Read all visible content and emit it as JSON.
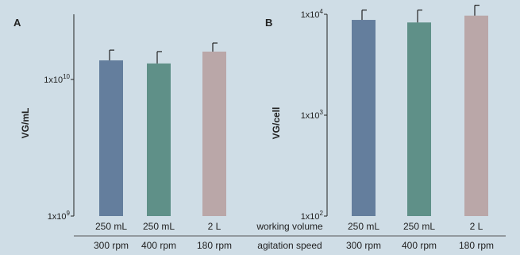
{
  "panels": {
    "A": {
      "label": "A",
      "ylabel": "VG/mL"
    },
    "B": {
      "label": "B",
      "ylabel": "VG/cell"
    }
  },
  "table": {
    "row_headers": [
      "working volume",
      "agitation speed"
    ],
    "volumes": [
      "250 mL",
      "250 mL",
      "2 L"
    ],
    "speeds": [
      "300 rpm",
      "400 rpm",
      "180 rpm"
    ]
  },
  "colors": {
    "background": "#cfdde6",
    "bars": [
      "#647e9d",
      "#5f9088",
      "#baa7a8"
    ],
    "axis": "#222222",
    "separator": "#555555"
  },
  "chart_data": [
    {
      "type": "bar",
      "title": "A",
      "ylabel": "VG/mL",
      "yscale": "log",
      "ylim": [
        1000000000,
        30000000000
      ],
      "yticks": [
        1000000000,
        10000000000
      ],
      "ytick_labels": [
        {
          "base": "1x10",
          "exp": "9"
        },
        {
          "base": "1x10",
          "exp": "10"
        }
      ],
      "categories": [
        "250 mL / 300 rpm",
        "250 mL / 400 rpm",
        "2 L / 180 rpm"
      ],
      "values": [
        13800000000,
        13100000000,
        16000000000
      ],
      "errors": [
        2600000000,
        2900000000,
        2500000000
      ],
      "grid": false,
      "legend": "none"
    },
    {
      "type": "bar",
      "title": "B",
      "ylabel": "VG/cell",
      "yscale": "log",
      "ylim": [
        100,
        10000
      ],
      "yticks": [
        100,
        1000,
        10000
      ],
      "ytick_labels": [
        {
          "base": "1x10",
          "exp": "2"
        },
        {
          "base": "1x10",
          "exp": "3"
        },
        {
          "base": "1x10",
          "exp": "4"
        }
      ],
      "categories": [
        "250 mL / 300 rpm",
        "250 mL / 400 rpm",
        "2 L / 180 rpm"
      ],
      "values": [
        8800,
        8300,
        9700
      ],
      "errors": [
        2200,
        2700,
        2600
      ],
      "grid": false,
      "legend": "none"
    }
  ]
}
